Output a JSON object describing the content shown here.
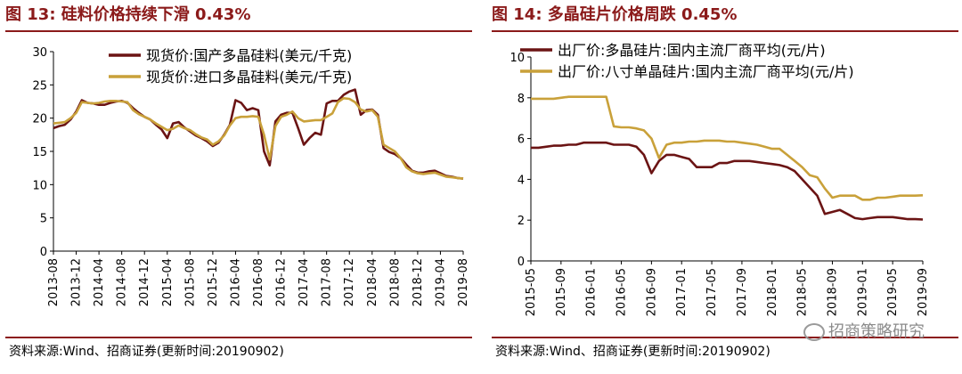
{
  "left": {
    "title": "图 13:  硅料价格持续下滑 0.43%",
    "source": "资料来源:Wind、招商证券(更新时间:20190902)"
  },
  "right": {
    "title": "图 14:  多晶硅片价格周跌 0.45%",
    "source": "资料来源:Wind、招商证券(更新时间:20190902)"
  },
  "watermark": "招商策略研究",
  "colors": {
    "series_dark": "#6b1414",
    "series_gold": "#c9a13a",
    "accent": "#8b1a1a"
  },
  "chart_data": [
    {
      "type": "line",
      "title": "",
      "xlabel": "",
      "ylabel": "",
      "ylim": [
        0,
        30
      ],
      "yticks": [
        0,
        5,
        10,
        15,
        20,
        25,
        30
      ],
      "x_tick_labels": [
        "2013-08",
        "2013-12",
        "2014-04",
        "2014-08",
        "2014-12",
        "2015-04",
        "2015-08",
        "2015-12",
        "2016-04",
        "2016-08",
        "2016-12",
        "2017-04",
        "2017-08",
        "2017-12",
        "2018-04",
        "2018-08",
        "2018-12",
        "2019-04",
        "2019-08"
      ],
      "legend": "top-right",
      "grid": false,
      "x_months": [
        "2013-08",
        "2013-09",
        "2013-10",
        "2013-11",
        "2013-12",
        "2014-01",
        "2014-02",
        "2014-03",
        "2014-04",
        "2014-05",
        "2014-06",
        "2014-07",
        "2014-08",
        "2014-09",
        "2014-10",
        "2014-11",
        "2014-12",
        "2015-01",
        "2015-02",
        "2015-03",
        "2015-04",
        "2015-05",
        "2015-06",
        "2015-07",
        "2015-08",
        "2015-09",
        "2015-10",
        "2015-11",
        "2015-12",
        "2016-01",
        "2016-02",
        "2016-03",
        "2016-04",
        "2016-05",
        "2016-06",
        "2016-07",
        "2016-08",
        "2016-09",
        "2016-10",
        "2016-11",
        "2016-12",
        "2017-01",
        "2017-02",
        "2017-03",
        "2017-04",
        "2017-05",
        "2017-06",
        "2017-07",
        "2017-08",
        "2017-09",
        "2017-10",
        "2017-11",
        "2017-12",
        "2018-01",
        "2018-02",
        "2018-03",
        "2018-04",
        "2018-05",
        "2018-06",
        "2018-07",
        "2018-08",
        "2018-09",
        "2018-10",
        "2018-11",
        "2018-12",
        "2019-01",
        "2019-02",
        "2019-03",
        "2019-04",
        "2019-05",
        "2019-06",
        "2019-07",
        "2019-08"
      ],
      "series": [
        {
          "name": "现货价:国产多晶硅料(美元/千克)",
          "color": "#6b1414",
          "values": [
            18.5,
            18.8,
            19.0,
            19.8,
            21.0,
            22.7,
            22.3,
            22.2,
            22.0,
            22.0,
            22.3,
            22.5,
            22.6,
            22.3,
            21.5,
            20.8,
            20.2,
            19.8,
            19.0,
            18.3,
            17.0,
            19.2,
            19.4,
            18.6,
            18.0,
            17.4,
            17.0,
            16.5,
            15.8,
            16.3,
            17.5,
            19.0,
            22.7,
            22.3,
            21.2,
            21.5,
            21.2,
            15.0,
            12.9,
            19.5,
            20.5,
            20.8,
            20.8,
            18.5,
            16.0,
            17.0,
            17.8,
            17.5,
            22.2,
            22.6,
            22.6,
            23.5,
            24.0,
            24.3,
            20.5,
            21.2,
            21.3,
            20.5,
            15.5,
            14.9,
            14.6,
            14.0,
            13.0,
            12.1,
            11.8,
            11.8,
            12.0,
            12.1,
            11.7,
            11.3,
            11.2,
            11.0,
            10.9
          ]
        },
        {
          "name": "现货价:进口多晶硅料(美元/千克)",
          "color": "#c9a13a",
          "values": [
            19.2,
            19.3,
            19.4,
            20.0,
            20.8,
            22.4,
            22.3,
            22.2,
            22.3,
            22.5,
            22.6,
            22.6,
            22.5,
            22.4,
            21.2,
            20.6,
            20.2,
            19.8,
            19.2,
            18.7,
            18.2,
            18.4,
            18.9,
            18.5,
            18.2,
            17.6,
            17.1,
            16.8,
            16.0,
            16.5,
            17.4,
            18.9,
            20.0,
            20.2,
            20.2,
            20.3,
            20.2,
            17.5,
            13.8,
            18.8,
            20.2,
            20.5,
            21.0,
            20.0,
            19.5,
            19.6,
            19.7,
            19.7,
            20.2,
            20.7,
            22.4,
            23.0,
            22.9,
            22.4,
            21.3,
            21.0,
            21.2,
            20.2,
            16.0,
            15.5,
            15.0,
            14.0,
            12.6,
            12.0,
            11.7,
            11.6,
            11.7,
            11.8,
            11.5,
            11.2,
            11.1,
            11.0,
            10.9
          ]
        }
      ]
    },
    {
      "type": "line",
      "title": "",
      "xlabel": "",
      "ylabel": "",
      "ylim": [
        0,
        10
      ],
      "yticks": [
        0,
        2,
        4,
        6,
        8,
        10
      ],
      "x_tick_labels": [
        "2015-05",
        "2015-09",
        "2016-01",
        "2016-05",
        "2016-09",
        "2017-01",
        "2017-05",
        "2017-09",
        "2018-01",
        "2018-05",
        "2018-09",
        "2019-01",
        "2019-05",
        "2019-09"
      ],
      "legend": "top",
      "grid": false,
      "x_months": [
        "2015-05",
        "2015-06",
        "2015-07",
        "2015-08",
        "2015-09",
        "2015-10",
        "2015-11",
        "2015-12",
        "2016-01",
        "2016-02",
        "2016-03",
        "2016-04",
        "2016-05",
        "2016-06",
        "2016-07",
        "2016-08",
        "2016-09",
        "2016-10",
        "2016-11",
        "2016-12",
        "2017-01",
        "2017-02",
        "2017-03",
        "2017-04",
        "2017-05",
        "2017-06",
        "2017-07",
        "2017-08",
        "2017-09",
        "2017-10",
        "2017-11",
        "2017-12",
        "2018-01",
        "2018-02",
        "2018-03",
        "2018-04",
        "2018-05",
        "2018-06",
        "2018-07",
        "2018-08",
        "2018-09",
        "2018-10",
        "2018-11",
        "2018-12",
        "2019-01",
        "2019-02",
        "2019-03",
        "2019-04",
        "2019-05",
        "2019-06",
        "2019-07",
        "2019-08",
        "2019-09"
      ],
      "series": [
        {
          "name": "出厂价:多晶硅片:国内主流厂商平均(元/片)",
          "color": "#6b1414",
          "values": [
            5.55,
            5.55,
            5.6,
            5.65,
            5.65,
            5.7,
            5.7,
            5.8,
            5.8,
            5.8,
            5.8,
            5.7,
            5.7,
            5.7,
            5.6,
            5.2,
            4.3,
            4.9,
            5.2,
            5.2,
            5.1,
            5.0,
            4.6,
            4.6,
            4.6,
            4.8,
            4.8,
            4.9,
            4.9,
            4.9,
            4.85,
            4.8,
            4.75,
            4.7,
            4.6,
            4.4,
            4.0,
            3.6,
            3.2,
            2.3,
            2.4,
            2.5,
            2.3,
            2.1,
            2.05,
            2.1,
            2.15,
            2.15,
            2.15,
            2.1,
            2.05,
            2.05,
            2.03
          ]
        },
        {
          "name": "出厂价:八寸单晶硅片:国内主流厂商平均(元/片)",
          "color": "#c9a13a",
          "values": [
            7.95,
            7.95,
            7.95,
            7.95,
            8.0,
            8.05,
            8.05,
            8.05,
            8.05,
            8.05,
            8.05,
            6.6,
            6.55,
            6.55,
            6.5,
            6.4,
            6.0,
            5.05,
            5.7,
            5.8,
            5.8,
            5.85,
            5.85,
            5.9,
            5.9,
            5.9,
            5.85,
            5.85,
            5.8,
            5.75,
            5.7,
            5.6,
            5.5,
            5.5,
            5.2,
            4.9,
            4.6,
            4.2,
            4.1,
            3.55,
            3.1,
            3.2,
            3.2,
            3.2,
            3.0,
            3.0,
            3.1,
            3.1,
            3.15,
            3.2,
            3.2,
            3.2,
            3.22
          ]
        }
      ]
    }
  ]
}
